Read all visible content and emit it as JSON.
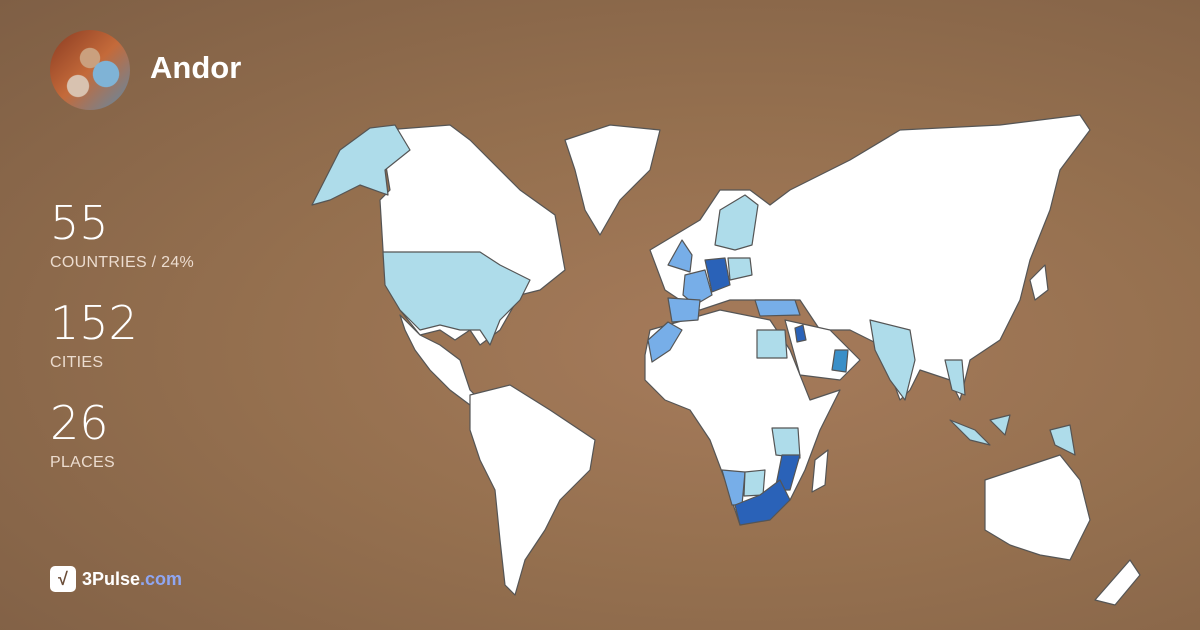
{
  "profile": {
    "name": "Andor"
  },
  "stats": [
    {
      "value": "55",
      "label": "COUNTRIES / 24%"
    },
    {
      "value": "152",
      "label": "CITIES"
    },
    {
      "value": "26",
      "label": "PLACES"
    }
  ],
  "brand": {
    "name": "3Pulse",
    "tld": ".com"
  },
  "colors": {
    "visited_light": "#aedcea",
    "visited_mid": "#77aee8",
    "visited_teal": "#3a8fc8",
    "visited_dark": "#2a62b8",
    "unvisited": "#ffffff"
  }
}
